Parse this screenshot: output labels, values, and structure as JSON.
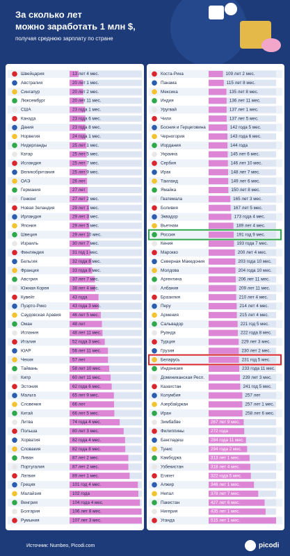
{
  "header": {
    "title_line1": "За сколько лет",
    "title_line2": "можно заработать 1 млн $,",
    "subtitle": "получая среднюю зарплату по стране"
  },
  "chart_data": [
    {
      "type": "bar",
      "orientation": "horizontal",
      "color": "#de86d6",
      "categories": [
        "Швейцария",
        "Австралия",
        "Сингапур",
        "Люксембург",
        "США",
        "Канада",
        "Дания",
        "Норвегия",
        "Нидерланды",
        "Катар",
        "Исландия",
        "Великобритания",
        "ОАЭ",
        "Германия",
        "Гонконг",
        "Новая Зеландия",
        "Ирландия",
        "Япония",
        "Швеция",
        "Израиль",
        "Финляндия",
        "Бельгия",
        "Франция",
        "Австрия",
        "Южная Корея",
        "Кувейт",
        "Пуэрто-Рико",
        "Саудовская Аравия",
        "Оман",
        "Испания",
        "Италия",
        "ЮАР",
        "Чехия",
        "Тайвань",
        "Кипр",
        "Эстония",
        "Мальта",
        "Словения",
        "Китай",
        "Литва",
        "Польша",
        "Хорватия",
        "Словакия",
        "Ливан",
        "Португалия",
        "Латвия",
        "Греция",
        "Малайзия",
        "Венгрия",
        "Болгария",
        "Румыния"
      ],
      "values": [
        13.33,
        20.08,
        20.17,
        20.92,
        23.08,
        23.5,
        23.67,
        24.08,
        25.08,
        25.42,
        25.58,
        25.75,
        26,
        27,
        27.17,
        29.08,
        29.25,
        29.42,
        29.83,
        30.58,
        31.08,
        32.67,
        33.67,
        37.58,
        38.33,
        43,
        43.25,
        46.42,
        48,
        48.92,
        52.25,
        56.92,
        57,
        58.83,
        60.92,
        62.5,
        65.75,
        66,
        66.42,
        74.33,
        80.25,
        82.33,
        82.67,
        87.17,
        87.17,
        89.08,
        101.33,
        102,
        104.33,
        106.67,
        107.25
      ],
      "value_labels": [
        "13 лет 4 мес.",
        "20 лет 1 мес.",
        "20 лет 2 мес.",
        "20 лет 11 мес.",
        "23 года 1 мес.",
        "23 года 6 мес.",
        "23 года 8 мес.",
        "24 года 1 мес.",
        "25 лет 1 мес.",
        "25 лет 5 мес.",
        "25 лет 7 мес.",
        "25 лет 9 мес.",
        "26 лет",
        "27 лет",
        "27 лет 2 мес.",
        "29 лет 1 мес.",
        "29 лет 3 мес.",
        "29 лет 5 мес.",
        "29 лет 10 мес.",
        "30 лет 7 мес.",
        "31 год 1 мес.",
        "32 года 8 мес.",
        "33 года 8 мес.",
        "37 лет 7 мес.",
        "38 лет 4 мес.",
        "43 года",
        "43 года 3 мес.",
        "46 лет 5 мес.",
        "48 лет",
        "48 лет 11 мес.",
        "52 года 3 мес.",
        "56 лет 11 мес.",
        "57 лет",
        "58 лет 10 мес.",
        "60 лет 11 мес.",
        "62 года 6 мес.",
        "65 лет 9 мес.",
        "66 лет",
        "66 лет 5 мес.",
        "74 года 4 мес.",
        "80 лет 3 мес.",
        "82 года 4 мес.",
        "82 года 8 мес.",
        "87 лет 2 мес.",
        "87 лет 2 мес.",
        "89 лет 1 мес.",
        "101 год 4 мес.",
        "102 года",
        "104 года 4 мес.",
        "106 лет 8 мес.",
        "107 лет 3 мес."
      ]
    },
    {
      "type": "bar",
      "orientation": "horizontal",
      "color": "#de86d6",
      "categories": [
        "Коста-Рика",
        "Панама",
        "Мексика",
        "Индия",
        "Уругвай",
        "Чили",
        "Босния и Герцеговина",
        "Черногория",
        "Иордания",
        "Украина",
        "Сербия",
        "Ирак",
        "Таиланд",
        "Ямайка",
        "Гватемала",
        "Боливия",
        "Эквадор",
        "Вьетнам",
        "Россия",
        "Кения",
        "Марокко",
        "Северная Македония",
        "Молдова",
        "Аргентина",
        "Албания",
        "Бразилия",
        "Перу",
        "Армения",
        "Сальвадор",
        "Руанда",
        "Турция",
        "Грузия",
        "Беларусь",
        "Индонезия",
        "Доминиканская Респ.",
        "Казахстан",
        "Колумбия",
        "Азербайджан",
        "Иран",
        "Зимбабве",
        "Филиппины",
        "Бангладеш",
        "Тунис",
        "Камбоджа",
        "Узбекистан",
        "Египет",
        "Алжир",
        "Непал",
        "Пакистан",
        "Нигерия",
        "Уганда"
      ],
      "values": [
        109.17,
        115.67,
        135.67,
        136.92,
        137.08,
        137.42,
        142.42,
        143.5,
        144,
        145.5,
        146.83,
        148.58,
        149.5,
        150.67,
        165.25,
        167.42,
        173.33,
        189.33,
        191.75,
        193.58,
        200.33,
        203.83,
        204.83,
        206.92,
        209.92,
        210.33,
        214.33,
        215.33,
        221.42,
        222.67,
        229.25,
        230.17,
        231.42,
        233.92,
        239.25,
        241.42,
        257,
        257.08,
        258.5,
        267.75,
        272,
        284.92,
        294.17,
        313.08,
        318.33,
        322.42,
        346.08,
        378.58,
        427.5,
        435.08,
        515.08
      ],
      "value_labels": [
        "109 лет 2 мес.",
        "115 лет 8 мес.",
        "135 лет 8 мес.",
        "136 лет 11 мес.",
        "137 лет 1 мес.",
        "137 лет 5 мес.",
        "142 года 5 мес.",
        "143 года 6 мес.",
        "144 года",
        "145 лет 6 мес.",
        "146 лет 10 мес.",
        "148 лет 7 мес.",
        "149 лет 6 мес.",
        "150 лет 8 мес.",
        "165 лет 3 мес.",
        "167 лет 5 мес.",
        "173 года 4 мес.",
        "189 лет 4 мес.",
        "191 год 9 мес.",
        "193 года 7 мес.",
        "200 лет 4 мес.",
        "203 года 10 мес.",
        "204 года 10 мес.",
        "206 лет 11 мес.",
        "209 лет 11 мес.",
        "210 лет 4 мес.",
        "214 лет 4 мес.",
        "215 лет 4 мес.",
        "221 год 5 мес.",
        "222 года 8 мес.",
        "229 лет 3 мес.",
        "230 лет 2 мес.",
        "231 год 5 мес.",
        "233 года 11 мес.",
        "239 лет 3 мес.",
        "241 год 5 мес.",
        "257 лет",
        "257 лет 1 мес.",
        "258 лет 6 мес.",
        "267 лет 9 мес.",
        "272 года",
        "284 года 11 мес.",
        "294 года 2 мес.",
        "313 лет 1 мес.",
        "318 лет 4 мес.",
        "322 года 5 мес.",
        "346 лет 1 мес.",
        "378 лет 7 мес.",
        "427 лет 6 мес.",
        "435 лет 1 мес.",
        "515 лет 1 мес."
      ],
      "highlights": [
        {
          "index": 18,
          "color": "#2fa84a"
        },
        {
          "index": 32,
          "color": "#d8262c"
        }
      ]
    }
  ],
  "footer": {
    "source": "Источник: Numbeo, Picodi.com",
    "brand": "picodi"
  }
}
